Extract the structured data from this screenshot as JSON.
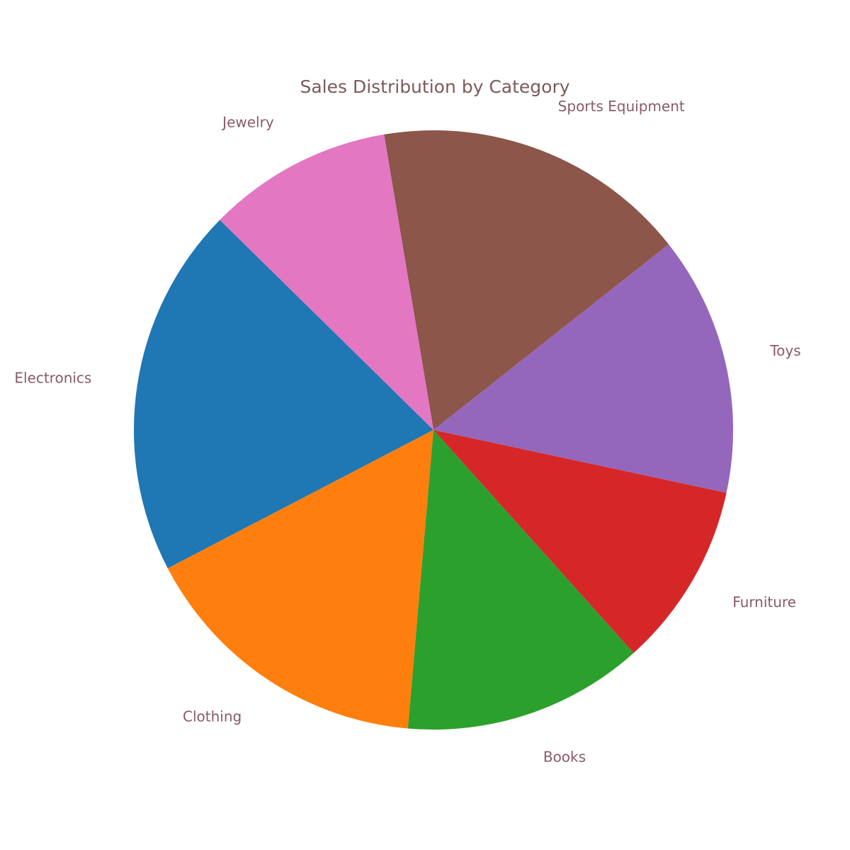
{
  "chart_data": {
    "type": "pie",
    "title": "Sales Distribution by Category",
    "categories": [
      "Electronics",
      "Clothing",
      "Books",
      "Furniture",
      "Toys",
      "Sports Equipment",
      "Jewelry"
    ],
    "values": [
      20,
      16,
      13,
      10,
      14,
      17,
      10
    ],
    "colors": [
      "#1f77b4",
      "#ff7f0e",
      "#2ca02c",
      "#d62728",
      "#9467bd",
      "#8c564b",
      "#e377c2"
    ],
    "start_angle_deg": 135.5,
    "direction": "counterclockwise",
    "legend": "none"
  }
}
